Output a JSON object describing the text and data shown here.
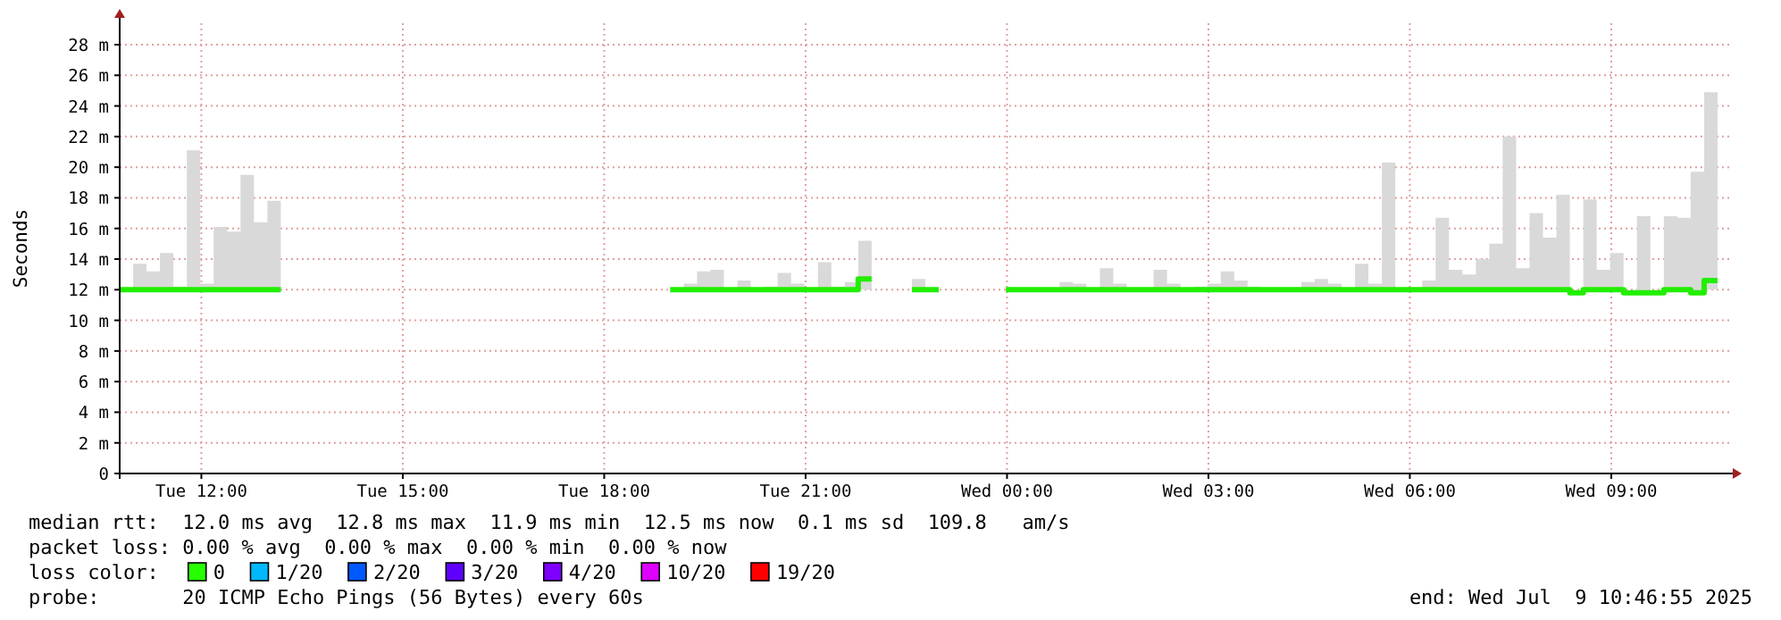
{
  "chart_data": {
    "type": "line",
    "ylabel": "Seconds",
    "x": [
      "2025-07-08T10:53",
      "2025-07-08T11:05",
      "2025-07-08T11:17",
      "2025-07-08T11:29",
      "2025-07-08T11:41",
      "2025-07-08T11:53",
      "2025-07-08T12:05",
      "2025-07-08T12:17",
      "2025-07-08T12:29",
      "2025-07-08T12:41",
      "2025-07-08T12:53",
      "2025-07-08T13:05",
      "2025-07-08T13:17",
      "2025-07-08T13:29",
      "2025-07-08T13:41",
      "2025-07-08T13:53",
      "2025-07-08T14:05",
      "2025-07-08T14:17",
      "2025-07-08T14:29",
      "2025-07-08T14:41",
      "2025-07-08T14:53",
      "2025-07-08T15:05",
      "2025-07-08T15:17",
      "2025-07-08T15:29",
      "2025-07-08T15:41",
      "2025-07-08T15:53",
      "2025-07-08T16:05",
      "2025-07-08T16:17",
      "2025-07-08T16:29",
      "2025-07-08T16:41",
      "2025-07-08T16:53",
      "2025-07-08T17:05",
      "2025-07-08T17:17",
      "2025-07-08T17:29",
      "2025-07-08T17:41",
      "2025-07-08T17:53",
      "2025-07-08T18:05",
      "2025-07-08T18:17",
      "2025-07-08T18:29",
      "2025-07-08T18:41",
      "2025-07-08T18:53",
      "2025-07-08T19:05",
      "2025-07-08T19:17",
      "2025-07-08T19:29",
      "2025-07-08T19:41",
      "2025-07-08T19:53",
      "2025-07-08T20:05",
      "2025-07-08T20:17",
      "2025-07-08T20:29",
      "2025-07-08T20:41",
      "2025-07-08T20:53",
      "2025-07-08T21:05",
      "2025-07-08T21:17",
      "2025-07-08T21:29",
      "2025-07-08T21:41",
      "2025-07-08T21:53",
      "2025-07-08T22:05",
      "2025-07-08T22:17",
      "2025-07-08T22:29",
      "2025-07-08T22:41",
      "2025-07-08T22:53",
      "2025-07-08T23:05",
      "2025-07-08T23:17",
      "2025-07-08T23:29",
      "2025-07-08T23:41",
      "2025-07-08T23:53",
      "2025-07-09T00:05",
      "2025-07-09T00:17",
      "2025-07-09T00:29",
      "2025-07-09T00:41",
      "2025-07-09T00:53",
      "2025-07-09T01:05",
      "2025-07-09T01:17",
      "2025-07-09T01:29",
      "2025-07-09T01:41",
      "2025-07-09T01:53",
      "2025-07-09T02:05",
      "2025-07-09T02:17",
      "2025-07-09T02:29",
      "2025-07-09T02:41",
      "2025-07-09T02:53",
      "2025-07-09T03:05",
      "2025-07-09T03:17",
      "2025-07-09T03:29",
      "2025-07-09T03:41",
      "2025-07-09T03:53",
      "2025-07-09T04:05",
      "2025-07-09T04:17",
      "2025-07-09T04:29",
      "2025-07-09T04:41",
      "2025-07-09T04:53",
      "2025-07-09T05:05",
      "2025-07-09T05:17",
      "2025-07-09T05:29",
      "2025-07-09T05:41",
      "2025-07-09T05:53",
      "2025-07-09T06:05",
      "2025-07-09T06:17",
      "2025-07-09T06:29",
      "2025-07-09T06:41",
      "2025-07-09T06:53",
      "2025-07-09T07:05",
      "2025-07-09T07:17",
      "2025-07-09T07:29",
      "2025-07-09T07:41",
      "2025-07-09T07:53",
      "2025-07-09T08:05",
      "2025-07-09T08:17",
      "2025-07-09T08:29",
      "2025-07-09T08:41",
      "2025-07-09T08:53",
      "2025-07-09T09:05",
      "2025-07-09T09:17",
      "2025-07-09T09:29",
      "2025-07-09T09:41",
      "2025-07-09T09:53",
      "2025-07-09T10:05",
      "2025-07-09T10:17",
      "2025-07-09T10:29"
    ],
    "series": [
      {
        "color": "#22ee00",
        "values": [
          12,
          12,
          12,
          12,
          12,
          12,
          12,
          12,
          12,
          12,
          12,
          12,
          null,
          null,
          null,
          null,
          null,
          null,
          null,
          null,
          null,
          null,
          null,
          null,
          null,
          null,
          null,
          null,
          null,
          null,
          null,
          null,
          null,
          null,
          null,
          null,
          null,
          null,
          null,
          null,
          null,
          12,
          12,
          12,
          12,
          12,
          12,
          12,
          12,
          12,
          12,
          12,
          12,
          12,
          12,
          12.7,
          null,
          null,
          null,
          12,
          12,
          null,
          null,
          null,
          null,
          null,
          12,
          12,
          12,
          12,
          12,
          12,
          12,
          12,
          12,
          12,
          12,
          12,
          12,
          12,
          12,
          12,
          12,
          12,
          12,
          12,
          12,
          12,
          12,
          12,
          12,
          12,
          12,
          12,
          12,
          12,
          12,
          12,
          12,
          12,
          12,
          12,
          12,
          12,
          12,
          12,
          12,
          12,
          11.8,
          12,
          12,
          12,
          11.8,
          11.8,
          11.8,
          12,
          12,
          11.8,
          12.6
        ],
        "lower": [
          12,
          12,
          12,
          12,
          12,
          12,
          12,
          12,
          12,
          12,
          12,
          12,
          null,
          null,
          null,
          null,
          null,
          null,
          null,
          null,
          null,
          null,
          null,
          null,
          null,
          null,
          null,
          null,
          null,
          null,
          null,
          null,
          null,
          null,
          null,
          null,
          null,
          null,
          null,
          null,
          null,
          12,
          12,
          12,
          12,
          12,
          12,
          12,
          12,
          12,
          12,
          12,
          12,
          12,
          12,
          12,
          null,
          null,
          null,
          12,
          12,
          null,
          null,
          null,
          null,
          null,
          12,
          12,
          12,
          12,
          12,
          12,
          12,
          12,
          12,
          12,
          12,
          12,
          12,
          12,
          12,
          12,
          12,
          12,
          12,
          12,
          12,
          12,
          12,
          12,
          12,
          12,
          12,
          12,
          12,
          12,
          12,
          12,
          12,
          12,
          12,
          12,
          12,
          12,
          12,
          12,
          12,
          12,
          11.8,
          12,
          12,
          12,
          11.8,
          11.8,
          11.8,
          12,
          12,
          11.8,
          12
        ],
        "upper": [
          12,
          13.7,
          13.2,
          14.4,
          12.2,
          21.1,
          12.4,
          16.1,
          15.8,
          19.5,
          16.4,
          17.8,
          null,
          null,
          null,
          null,
          null,
          null,
          null,
          null,
          null,
          null,
          null,
          null,
          null,
          null,
          null,
          null,
          null,
          null,
          null,
          null,
          null,
          null,
          null,
          null,
          null,
          null,
          null,
          null,
          null,
          12,
          12.4,
          13.2,
          13.3,
          12,
          12.6,
          12,
          12.2,
          13.1,
          12.4,
          12,
          13.8,
          12.2,
          12.5,
          15.2,
          null,
          null,
          null,
          12.7,
          12,
          null,
          null,
          null,
          null,
          null,
          12,
          12,
          12,
          12,
          12.5,
          12.4,
          12,
          13.4,
          12.4,
          12,
          12,
          13.3,
          12.4,
          12,
          12.2,
          12.4,
          13.2,
          12.6,
          12.2,
          12,
          12,
          12,
          12.5,
          12.7,
          12.4,
          12,
          13.7,
          12.4,
          20.3,
          12,
          12,
          12.6,
          16.7,
          13.3,
          13,
          14,
          15,
          22,
          13.4,
          17,
          15.4,
          18.2,
          11.8,
          17.9,
          13.3,
          14.4,
          11.8,
          16.8,
          11.8,
          16.8,
          16.7,
          19.7,
          24.9
        ]
      }
    ],
    "xlim": [
      "2025-07-08T10:47",
      "2025-07-09T10:47"
    ],
    "xticks": [
      {
        "value": "2025-07-08T12:00",
        "label": "Tue 12:00"
      },
      {
        "value": "2025-07-08T15:00",
        "label": "Tue 15:00"
      },
      {
        "value": "2025-07-08T18:00",
        "label": "Tue 18:00"
      },
      {
        "value": "2025-07-08T21:00",
        "label": "Tue 21:00"
      },
      {
        "value": "2025-07-09T00:00",
        "label": "Wed 00:00"
      },
      {
        "value": "2025-07-09T03:00",
        "label": "Wed 03:00"
      },
      {
        "value": "2025-07-09T06:00",
        "label": "Wed 06:00"
      },
      {
        "value": "2025-07-09T09:00",
        "label": "Wed 09:00"
      }
    ],
    "ylim": [
      0,
      29.4
    ],
    "yticks": [
      0,
      {
        "value": 2,
        "label": "2 m"
      },
      {
        "value": 4,
        "label": "4 m"
      },
      {
        "value": 6,
        "label": "6 m"
      },
      {
        "value": 8,
        "label": "8 m"
      },
      {
        "value": 10,
        "label": "10 m"
      },
      {
        "value": 12,
        "label": "12 m"
      },
      {
        "value": 14,
        "label": "14 m"
      },
      {
        "value": 16,
        "label": "16 m"
      },
      {
        "value": 18,
        "label": "18 m"
      },
      {
        "value": 20,
        "label": "20 m"
      },
      {
        "value": 22,
        "label": "22 m"
      },
      {
        "value": 24,
        "label": "24 m"
      },
      {
        "value": 26,
        "label": "26 m"
      },
      {
        "value": 28,
        "label": "28 m"
      }
    ],
    "grid": true,
    "annotations": [
      "median rtt:  12.0 ms avg  12.8 ms max  11.9 ms min  12.5 ms now  0.1 ms sd  109.8   am/s",
      "packet loss: 0.00 % avg  0.00 % max  0.00 % min  0.00 % now",
      "loss color:",
      "0",
      "1/20",
      "2/20",
      "3/20",
      "4/20",
      "10/20",
      "19/20",
      "probe:       20 ICMP Echo Pings (56 Bytes) every 60s",
      "end: Wed Jul  9 10:46:55 2025"
    ]
  }
}
